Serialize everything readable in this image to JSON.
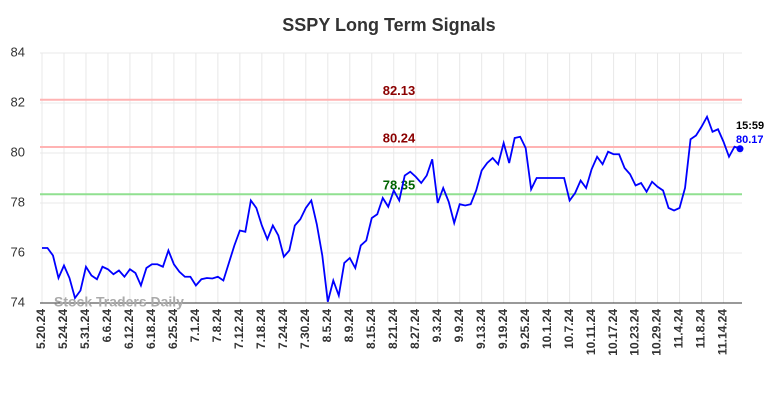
{
  "chart_data": {
    "type": "line",
    "title": "SSPY Long Term Signals",
    "watermark": "Stock Traders Daily",
    "last_time": "15:59",
    "categories": [
      "5.20.24",
      null,
      null,
      null,
      "5.24.24",
      null,
      null,
      null,
      "5.31.24",
      null,
      null,
      null,
      "6.6.24",
      null,
      null,
      null,
      "6.12.24",
      null,
      null,
      null,
      "6.18.24",
      null,
      null,
      null,
      "6.25.24",
      null,
      null,
      null,
      "7.1.24",
      null,
      null,
      null,
      "7.8.24",
      null,
      null,
      null,
      "7.12.24",
      null,
      null,
      null,
      "7.18.24",
      null,
      null,
      null,
      "7.24.24",
      null,
      null,
      null,
      "7.30.24",
      null,
      null,
      null,
      "8.5.24",
      null,
      null,
      null,
      "8.9.24",
      null,
      null,
      null,
      "8.15.24",
      null,
      null,
      null,
      "8.21.24",
      null,
      null,
      null,
      "8.27.24",
      null,
      null,
      null,
      "9.3.24",
      null,
      null,
      null,
      "9.9.24",
      null,
      null,
      null,
      "9.13.24",
      null,
      null,
      null,
      "9.19.24",
      null,
      null,
      null,
      "9.25.24",
      null,
      null,
      null,
      "10.1.24",
      null,
      null,
      null,
      "10.7.24",
      null,
      null,
      null,
      "10.11.24",
      null,
      null,
      null,
      "10.17.24",
      null,
      null,
      null,
      "10.23.24",
      null,
      null,
      null,
      "10.29.24",
      null,
      null,
      null,
      "11.4.24",
      null,
      null,
      null,
      "11.8.24",
      null,
      null,
      null,
      "11.14.24",
      null,
      null,
      null
    ],
    "series": [
      {
        "color": "#0000ff",
        "values": [
          76.2,
          76.2,
          75.9,
          75.0,
          75.5,
          75.0,
          74.2,
          74.5,
          75.45,
          75.1,
          74.95,
          75.45,
          75.35,
          75.15,
          75.3,
          75.05,
          75.35,
          75.2,
          74.7,
          75.4,
          75.55,
          75.55,
          75.45,
          76.1,
          75.55,
          75.25,
          75.05,
          75.05,
          74.7,
          74.95,
          75.0,
          74.98,
          75.05,
          74.9,
          75.6,
          76.3,
          76.9,
          76.85,
          78.1,
          77.8,
          77.1,
          76.55,
          77.1,
          76.7,
          75.85,
          76.1,
          77.1,
          77.35,
          77.8,
          78.1,
          77.15,
          75.9,
          74.05,
          74.9,
          74.3,
          75.6,
          75.8,
          75.4,
          76.3,
          76.5,
          77.4,
          77.55,
          78.2,
          77.85,
          78.5,
          78.1,
          79.1,
          79.25,
          79.05,
          78.8,
          79.1,
          79.75,
          78.0,
          78.6,
          78.05,
          77.2,
          77.95,
          77.9,
          77.95,
          78.5,
          79.3,
          79.6,
          79.8,
          79.55,
          80.4,
          79.6,
          80.6,
          80.65,
          80.2,
          78.55,
          79.0,
          79.0,
          79.0,
          79.0,
          79.0,
          79.0,
          78.1,
          78.4,
          78.9,
          78.6,
          79.35,
          79.85,
          79.55,
          80.05,
          79.95,
          79.95,
          79.4,
          79.15,
          78.7,
          78.8,
          78.45,
          78.85,
          78.65,
          78.5,
          77.8,
          77.7,
          77.8,
          78.6,
          80.55,
          80.7,
          81.05,
          81.45,
          80.85,
          80.95,
          80.45,
          79.85,
          80.25,
          80.17
        ]
      }
    ],
    "levels": [
      {
        "value": 82.13,
        "color": "#ffb3b3",
        "label_color": "#8b0000"
      },
      {
        "value": 80.24,
        "color": "#ffb3b3",
        "label_color": "#8b0000"
      },
      {
        "value": 78.35,
        "color": "#90e090",
        "label_color": "#006400"
      }
    ],
    "ylim": [
      74,
      84
    ],
    "yticks": [
      74,
      76,
      78,
      80,
      82,
      84
    ],
    "grid": true
  }
}
